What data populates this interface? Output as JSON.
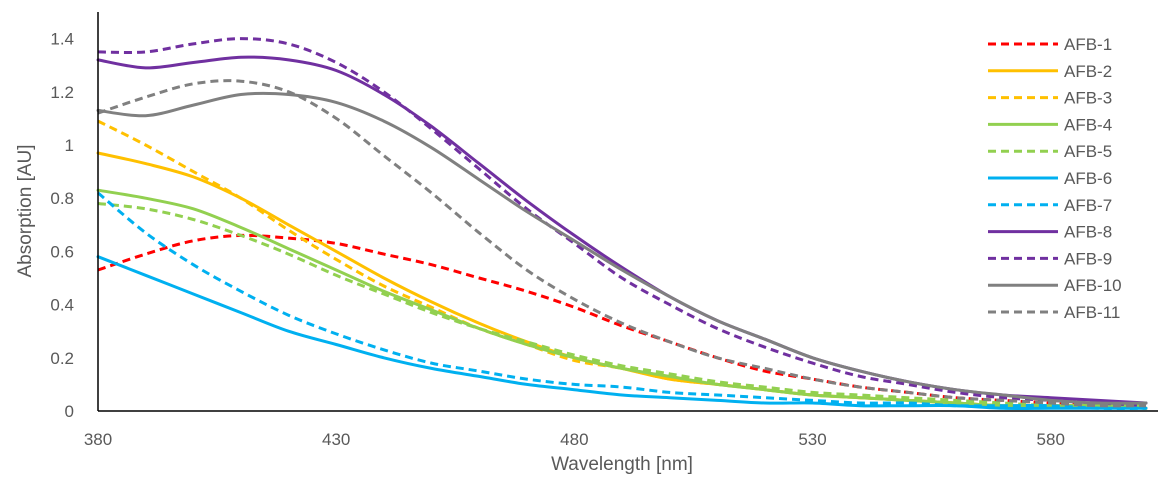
{
  "chart_data": {
    "type": "line",
    "title": "",
    "xlabel": "Wavelength [nm]",
    "ylabel": "Absorption [AU]",
    "xlim": [
      380,
      600
    ],
    "ylim": [
      0,
      1.5
    ],
    "x_ticks": [
      "380",
      "430",
      "480",
      "530",
      "580"
    ],
    "y_ticks": [
      "0",
      "0.2",
      "0.4",
      "0.6",
      "0.8",
      "1",
      "1.2",
      "1.4"
    ],
    "grid": false,
    "legend_position": "right",
    "x": [
      380,
      390,
      400,
      410,
      420,
      430,
      440,
      450,
      460,
      470,
      480,
      490,
      500,
      510,
      520,
      530,
      540,
      550,
      560,
      570,
      580,
      590,
      600
    ],
    "series": [
      {
        "name": "AFB-1",
        "color": "#ff0000",
        "dash": true,
        "values": [
          0.53,
          0.59,
          0.64,
          0.66,
          0.65,
          0.63,
          0.59,
          0.55,
          0.5,
          0.45,
          0.39,
          0.32,
          0.26,
          0.2,
          0.15,
          0.12,
          0.09,
          0.07,
          0.05,
          0.04,
          0.03,
          0.02,
          0.02
        ]
      },
      {
        "name": "AFB-2",
        "color": "#ffc000",
        "dash": false,
        "values": [
          0.97,
          0.93,
          0.88,
          0.8,
          0.7,
          0.6,
          0.5,
          0.41,
          0.33,
          0.26,
          0.2,
          0.16,
          0.12,
          0.1,
          0.08,
          0.06,
          0.05,
          0.04,
          0.03,
          0.02,
          0.02,
          0.02,
          0.01
        ]
      },
      {
        "name": "AFB-3",
        "color": "#ffc000",
        "dash": true,
        "values": [
          1.09,
          1.0,
          0.9,
          0.8,
          0.68,
          0.57,
          0.47,
          0.39,
          0.31,
          0.25,
          0.19,
          0.16,
          0.12,
          0.1,
          0.08,
          0.06,
          0.05,
          0.04,
          0.03,
          0.02,
          0.02,
          0.02,
          0.01
        ]
      },
      {
        "name": "AFB-4",
        "color": "#92d050",
        "dash": false,
        "values": [
          0.83,
          0.8,
          0.76,
          0.69,
          0.61,
          0.53,
          0.45,
          0.38,
          0.31,
          0.25,
          0.2,
          0.16,
          0.13,
          0.1,
          0.08,
          0.06,
          0.05,
          0.04,
          0.03,
          0.02,
          0.02,
          0.02,
          0.01
        ]
      },
      {
        "name": "AFB-5",
        "color": "#92d050",
        "dash": true,
        "values": [
          0.78,
          0.76,
          0.72,
          0.66,
          0.59,
          0.51,
          0.44,
          0.37,
          0.31,
          0.26,
          0.21,
          0.17,
          0.14,
          0.11,
          0.09,
          0.07,
          0.06,
          0.05,
          0.04,
          0.03,
          0.02,
          0.02,
          0.02
        ]
      },
      {
        "name": "AFB-6",
        "color": "#00b0f0",
        "dash": false,
        "values": [
          0.58,
          0.51,
          0.44,
          0.37,
          0.3,
          0.25,
          0.2,
          0.16,
          0.13,
          0.1,
          0.08,
          0.06,
          0.05,
          0.04,
          0.03,
          0.03,
          0.02,
          0.02,
          0.02,
          0.01,
          0.01,
          0.01,
          0.01
        ]
      },
      {
        "name": "AFB-7",
        "color": "#00b0f0",
        "dash": true,
        "values": [
          0.82,
          0.67,
          0.55,
          0.45,
          0.36,
          0.29,
          0.23,
          0.18,
          0.15,
          0.12,
          0.1,
          0.09,
          0.07,
          0.06,
          0.05,
          0.04,
          0.03,
          0.03,
          0.02,
          0.02,
          0.02,
          0.01,
          0.01
        ]
      },
      {
        "name": "AFB-8",
        "color": "#7030a0",
        "dash": false,
        "values": [
          1.32,
          1.29,
          1.31,
          1.33,
          1.32,
          1.28,
          1.19,
          1.07,
          0.93,
          0.79,
          0.66,
          0.54,
          0.43,
          0.34,
          0.27,
          0.2,
          0.15,
          0.11,
          0.08,
          0.06,
          0.05,
          0.04,
          0.03
        ]
      },
      {
        "name": "AFB-9",
        "color": "#7030a0",
        "dash": true,
        "values": [
          1.35,
          1.35,
          1.38,
          1.4,
          1.38,
          1.31,
          1.2,
          1.06,
          0.91,
          0.76,
          0.63,
          0.5,
          0.4,
          0.31,
          0.24,
          0.18,
          0.13,
          0.1,
          0.07,
          0.05,
          0.04,
          0.03,
          0.02
        ]
      },
      {
        "name": "AFB-10",
        "color": "#808080",
        "dash": false,
        "values": [
          1.13,
          1.11,
          1.15,
          1.19,
          1.19,
          1.16,
          1.09,
          0.99,
          0.87,
          0.75,
          0.64,
          0.53,
          0.43,
          0.34,
          0.27,
          0.2,
          0.15,
          0.11,
          0.08,
          0.06,
          0.04,
          0.03,
          0.03
        ]
      },
      {
        "name": "AFB-11",
        "color": "#808080",
        "dash": true,
        "values": [
          1.12,
          1.18,
          1.23,
          1.24,
          1.2,
          1.1,
          0.96,
          0.82,
          0.67,
          0.53,
          0.42,
          0.33,
          0.26,
          0.2,
          0.16,
          0.12,
          0.09,
          0.07,
          0.05,
          0.04,
          0.03,
          0.02,
          0.02
        ]
      }
    ]
  }
}
